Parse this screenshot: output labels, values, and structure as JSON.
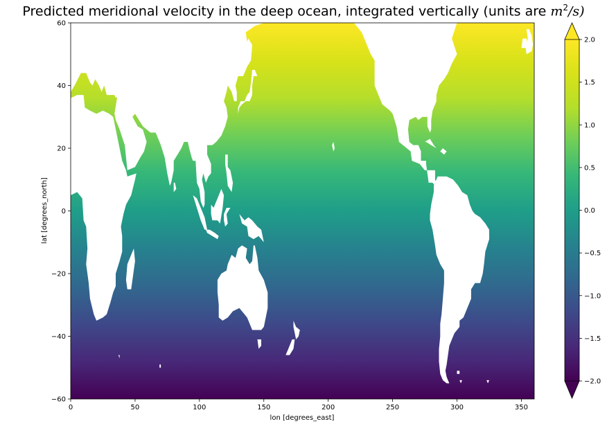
{
  "chart_data": {
    "type": "heatmap",
    "title": "Predicted meridional velocity in the deep ocean, integrated vertically (units are ",
    "title_math": "m",
    "title_sup": "2",
    "title_math_tail": "/s)",
    "title_end": ")",
    "xlabel": "lon [degrees_east]",
    "ylabel": "lat [degrees_north]",
    "xlim": [
      0,
      360
    ],
    "ylim": [
      -60,
      60
    ],
    "xticks": [
      0,
      50,
      100,
      150,
      200,
      250,
      300,
      350
    ],
    "xtick_labels": [
      "0",
      "50",
      "100",
      "150",
      "200",
      "250",
      "300",
      "350"
    ],
    "yticks": [
      -60,
      -40,
      -20,
      0,
      20,
      40,
      60
    ],
    "ytick_labels": [
      "−60",
      "−40",
      "−20",
      "0",
      "20",
      "40",
      "60"
    ],
    "colormap": "viridis",
    "colorbar": {
      "vmin": -2.0,
      "vmax": 2.0,
      "extend": "both",
      "ticks": [
        -2.0,
        -1.5,
        -1.0,
        -0.5,
        0.0,
        0.5,
        1.0,
        1.5,
        2.0
      ],
      "tick_labels": [
        "−2.0",
        "−1.5",
        "−1.0",
        "−0.5",
        "0.0",
        "0.5",
        "1.0",
        "1.5",
        "2.0"
      ]
    },
    "field_description_values": {
      "value_at_lat_-60": -2.0,
      "value_at_lat_0": 0.0,
      "value_at_lat_60": 2.0
    },
    "land_color": "#ffffff"
  }
}
